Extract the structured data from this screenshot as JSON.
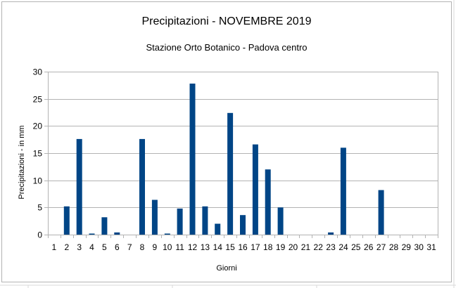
{
  "chart_data": {
    "type": "bar",
    "title": "Precipitazioni - NOVEMBRE 2019",
    "subtitle": "Stazione Orto Botanico - Padova centro",
    "xlabel": "Giorni",
    "ylabel": "Precipitazioni - in mm",
    "ylim": [
      0,
      30
    ],
    "yticks": [
      0,
      5,
      10,
      15,
      20,
      25,
      30
    ],
    "grid": true,
    "legend": "none",
    "bar_color": "#004586",
    "categories": [
      "1",
      "2",
      "3",
      "4",
      "5",
      "6",
      "7",
      "8",
      "9",
      "10",
      "11",
      "12",
      "13",
      "14",
      "15",
      "16",
      "17",
      "18",
      "19",
      "20",
      "21",
      "22",
      "23",
      "24",
      "25",
      "26",
      "27",
      "28",
      "29",
      "30",
      "31"
    ],
    "values": [
      0,
      5.2,
      17.6,
      0.2,
      3.2,
      0.4,
      0,
      17.6,
      6.4,
      0.2,
      4.8,
      27.8,
      5.2,
      2.0,
      22.4,
      3.6,
      16.6,
      12.0,
      5.0,
      0,
      0,
      0,
      0.4,
      16.0,
      0,
      0,
      8.2,
      0,
      0,
      0,
      0
    ]
  }
}
